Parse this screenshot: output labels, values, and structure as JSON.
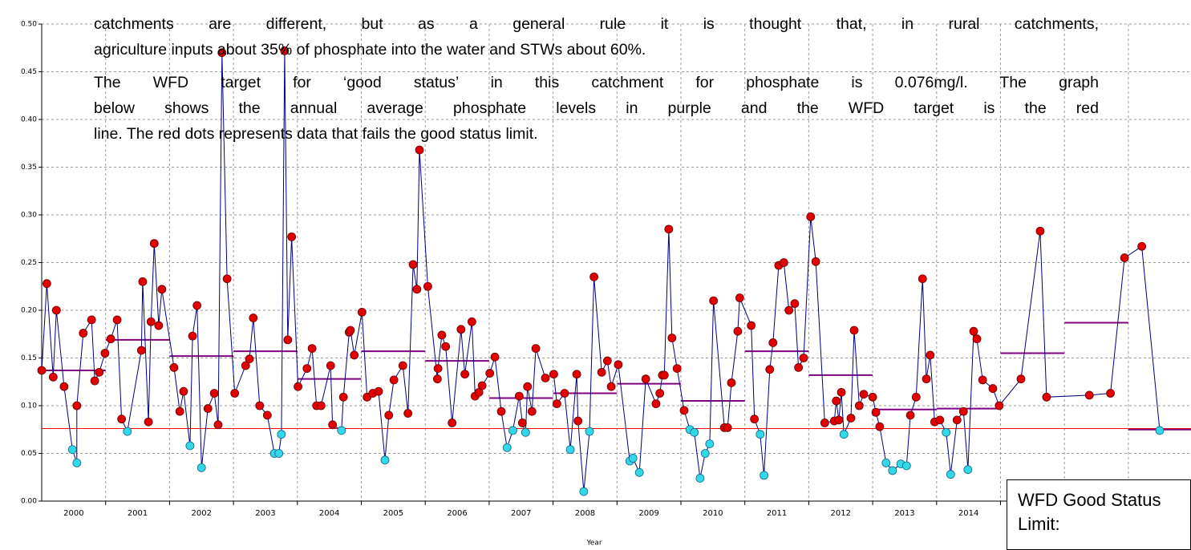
{
  "chart_data": {
    "type": "line",
    "x_label": "Year",
    "annotations": [
      [
        "catchments are different, but as a general rule it is thought that, in rural catchments,",
        "agriculture inputs about 35% of phosphate into the water and STWs about 60%."
      ],
      [
        "The WFD target for ‘good status’ in this catchment for phosphate is 0.076mg/l.  The graph",
        "below shows the annual average phosphate levels in purple and the WFD target is the red",
        "line.  The red dots represents data that fails the good status limit."
      ]
    ],
    "box_text": "WFD Good Status Limit:",
    "xlim": [
      2000,
      2018
    ],
    "ylim": [
      0,
      0.5
    ],
    "yticks": [
      {
        "value": 0,
        "label": "0.00"
      },
      0.05,
      {
        "value": 0.1,
        "label": "0.10"
      },
      0.15,
      {
        "value": 0.2,
        "label": "0.20"
      },
      0.25,
      {
        "value": 0.3,
        "label": "0.30"
      },
      0.35,
      {
        "value": 0.4,
        "label": "0.40"
      },
      0.45,
      {
        "value": 0.5,
        "label": "0.50"
      }
    ],
    "xticks": [
      {
        "value": 2000.5,
        "label": "2000"
      },
      {
        "value": 2001.5,
        "label": "2001"
      },
      {
        "value": 2002.5,
        "label": "2002"
      },
      {
        "value": 2003.5,
        "label": "2003"
      },
      {
        "value": 2004.5,
        "label": "2004"
      },
      {
        "value": 2005.5,
        "label": "2005"
      },
      {
        "value": 2006.5,
        "label": "2006"
      },
      {
        "value": 2007.5,
        "label": "2007"
      },
      {
        "value": 2008.5,
        "label": "2008"
      },
      {
        "value": 2009.5,
        "label": "2009"
      },
      {
        "value": 2010.5,
        "label": "2010"
      },
      {
        "value": 2011.5,
        "label": "2011"
      },
      {
        "value": 2012.5,
        "label": "2012"
      },
      {
        "value": 2013.5,
        "label": "2013"
      },
      {
        "value": 2014.5,
        "label": "2014"
      }
    ],
    "xgrid": [
      2001,
      2002,
      2003,
      2004,
      2005,
      2006,
      2007,
      2008,
      2009,
      2010,
      2011,
      2012,
      2013,
      2014,
      2015,
      2016,
      2017
    ],
    "grid": true,
    "line_color": "#000080",
    "fail_color": "#e00000",
    "pass_color": "#33d8e8",
    "limit": 0.076,
    "limit_color": "#ff0000",
    "average_color": "#800080",
    "average_years": [
      2000,
      2001,
      2002,
      2003,
      2004,
      2005,
      2006,
      2007,
      2008,
      2009,
      2010,
      2011,
      2012,
      2013,
      2014,
      2015,
      2016,
      2017
    ],
    "averages": [
      0.137,
      0.169,
      0.152,
      0.157,
      0.128,
      0.157,
      0.147,
      0.108,
      0.113,
      0.123,
      0.105,
      0.157,
      0.132,
      0.096,
      0.097,
      0.155,
      0.187,
      0.075
    ],
    "x": [
      2000.0,
      2000.08,
      2000.18,
      2000.23,
      2000.35,
      2000.48,
      2000.55,
      2000.55,
      2000.65,
      2000.78,
      2000.83,
      2000.9,
      2000.99,
      2001.08,
      2001.18,
      2001.25,
      2001.34,
      2001.56,
      2001.58,
      2001.67,
      2001.71,
      2001.76,
      2001.83,
      2001.88,
      2002.07,
      2002.16,
      2002.22,
      2002.32,
      2002.36,
      2002.43,
      2002.5,
      2002.6,
      2002.7,
      2002.76,
      2002.82,
      2002.9,
      2003.02,
      2003.19,
      2003.25,
      2003.31,
      2003.41,
      2003.53,
      2003.64,
      2003.71,
      2003.75,
      2003.8,
      2003.85,
      2003.91,
      2004.01,
      2004.15,
      2004.23,
      2004.3,
      2004.37,
      2004.52,
      2004.55,
      2004.69,
      2004.72,
      2004.81,
      2004.83,
      2004.89,
      2005.01,
      2005.09,
      2005.18,
      2005.27,
      2005.37,
      2005.43,
      2005.51,
      2005.65,
      2005.73,
      2005.81,
      2005.87,
      2005.91,
      2006.04,
      2006.19,
      2006.2,
      2006.26,
      2006.32,
      2006.42,
      2006.56,
      2006.62,
      2006.73,
      2006.78,
      2006.84,
      2006.89,
      2007.01,
      2007.09,
      2007.19,
      2007.28,
      2007.37,
      2007.47,
      2007.52,
      2007.57,
      2007.6,
      2007.67,
      2007.73,
      2007.88,
      2008.01,
      2008.06,
      2008.18,
      2008.27,
      2008.37,
      2008.39,
      2008.48,
      2008.57,
      2008.64,
      2008.76,
      2008.85,
      2008.91,
      2009.02,
      2009.2,
      2009.25,
      2009.35,
      2009.45,
      2009.61,
      2009.67,
      2009.71,
      2009.74,
      2009.81,
      2009.86,
      2009.94,
      2010.05,
      2010.14,
      2010.21,
      2010.3,
      2010.38,
      2010.45,
      2010.51,
      2010.68,
      2010.73,
      2010.79,
      2010.89,
      2010.92,
      2011.1,
      2011.15,
      2011.24,
      2011.3,
      2011.39,
      2011.44,
      2011.53,
      2011.61,
      2011.69,
      2011.78,
      2011.84,
      2011.92,
      2012.03,
      2012.11,
      2012.25,
      2012.4,
      2012.43,
      2012.47,
      2012.51,
      2012.55,
      2012.66,
      2012.71,
      2012.79,
      2012.86,
      2013.0,
      2013.05,
      2013.11,
      2013.21,
      2013.31,
      2013.44,
      2013.53,
      2013.59,
      2013.68,
      2013.78,
      2013.84,
      2013.9,
      2013.97,
      2014.05,
      2014.15,
      2014.22,
      2014.32,
      2014.42,
      2014.49,
      2014.58,
      2014.63,
      2014.72,
      2014.88,
      2014.98,
      2015.32,
      2015.62,
      2015.72,
      2016.39,
      2016.72,
      2016.94,
      2017.21,
      2017.49
    ],
    "values": [
      0.137,
      0.228,
      0.13,
      0.2,
      0.12,
      0.054,
      0.04,
      0.1,
      0.176,
      0.19,
      0.126,
      0.135,
      0.155,
      0.17,
      0.19,
      0.086,
      0.073,
      0.158,
      0.23,
      0.083,
      0.188,
      0.27,
      0.184,
      0.222,
      0.14,
      0.094,
      0.115,
      0.058,
      0.173,
      0.205,
      0.035,
      0.097,
      0.113,
      0.08,
      0.47,
      0.233,
      0.113,
      0.142,
      0.149,
      0.192,
      0.1,
      0.09,
      0.05,
      0.05,
      0.07,
      0.472,
      0.169,
      0.277,
      0.12,
      0.139,
      0.16,
      0.1,
      0.1,
      0.142,
      0.08,
      0.074,
      0.109,
      0.177,
      0.179,
      0.153,
      0.198,
      0.109,
      0.113,
      0.115,
      0.043,
      0.09,
      0.127,
      0.142,
      0.092,
      0.248,
      0.222,
      0.368,
      0.225,
      0.128,
      0.139,
      0.174,
      0.162,
      0.082,
      0.18,
      0.133,
      0.188,
      0.11,
      0.114,
      0.121,
      0.134,
      0.151,
      0.094,
      0.056,
      0.074,
      0.11,
      0.082,
      0.072,
      0.12,
      0.094,
      0.16,
      0.129,
      0.133,
      0.102,
      0.113,
      0.054,
      0.133,
      0.084,
      0.01,
      0.073,
      0.235,
      0.135,
      0.147,
      0.12,
      0.143,
      0.042,
      0.045,
      0.03,
      0.128,
      0.102,
      0.113,
      0.132,
      0.132,
      0.285,
      0.171,
      0.139,
      0.095,
      0.075,
      0.072,
      0.024,
      0.05,
      0.06,
      0.21,
      0.077,
      0.077,
      0.124,
      0.178,
      0.213,
      0.184,
      0.086,
      0.07,
      0.027,
      0.138,
      0.166,
      0.247,
      0.25,
      0.2,
      0.207,
      0.14,
      0.15,
      0.298,
      0.251,
      0.082,
      0.084,
      0.105,
      0.085,
      0.114,
      0.07,
      0.087,
      0.179,
      0.1,
      0.112,
      0.109,
      0.093,
      0.078,
      0.04,
      0.032,
      0.039,
      0.037,
      0.09,
      0.109,
      0.233,
      0.128,
      0.153,
      0.083,
      0.085,
      0.072,
      0.028,
      0.085,
      0.094,
      0.033,
      0.178,
      0.17,
      0.127,
      0.118,
      0.1,
      0.128,
      0.283,
      0.109,
      0.111,
      0.113,
      0.255,
      0.267,
      0.074
    ]
  }
}
